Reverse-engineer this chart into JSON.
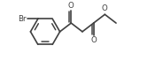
{
  "bg_color": "#ffffff",
  "line_color": "#404040",
  "line_width": 1.2,
  "font_size": 6.2,
  "font_color": "#404040",
  "figsize": [
    1.84,
    0.69
  ],
  "dpi": 100,
  "br_label": "Br",
  "o_label": "O"
}
